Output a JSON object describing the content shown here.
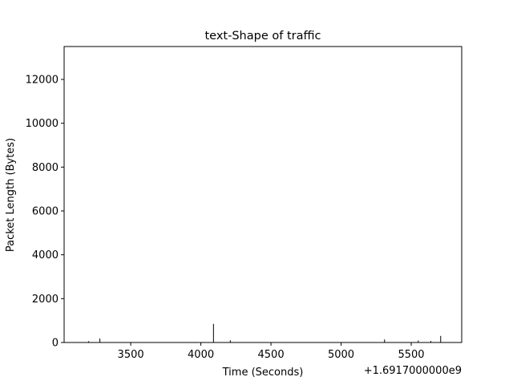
{
  "chart_data": {
    "type": "bar",
    "title": "text-Shape of traffic",
    "xlabel": "Time (Seconds)",
    "ylabel": "Packet Length (Bytes)",
    "x_offset_label": "+1.6917000000e9",
    "xlim": [
      3025,
      5860
    ],
    "ylim": [
      0,
      13500
    ],
    "x_ticks": [
      3500,
      4000,
      4500,
      5000,
      5500
    ],
    "y_ticks": [
      0,
      2000,
      4000,
      6000,
      8000,
      10000,
      12000
    ],
    "grid": false,
    "colors": {
      "bars": "#000000",
      "axes": "#000000",
      "background": "#ffffff"
    },
    "points": [
      {
        "x": 3200,
        "y": 60
      },
      {
        "x": 3280,
        "y": 180
      },
      {
        "x": 4090,
        "y": 850
      },
      {
        "x": 4210,
        "y": 100
      },
      {
        "x": 5310,
        "y": 140
      },
      {
        "x": 5550,
        "y": 90
      },
      {
        "x": 5640,
        "y": 70
      },
      {
        "x": 5710,
        "y": 300
      }
    ]
  }
}
